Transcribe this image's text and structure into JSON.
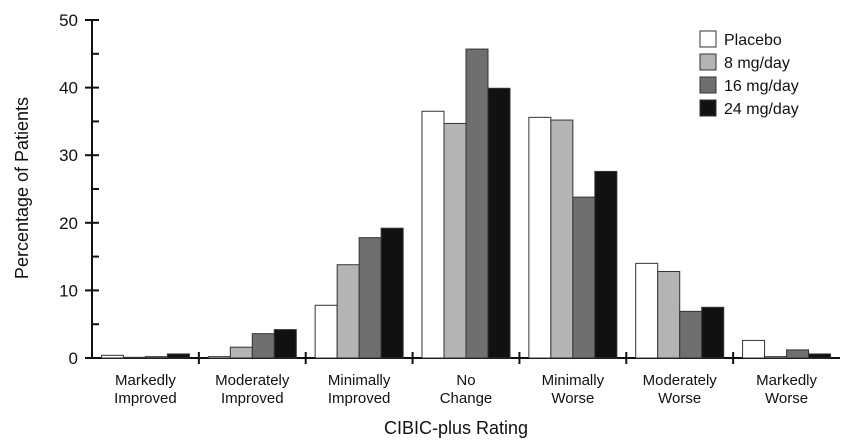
{
  "chart_data": {
    "type": "bar",
    "xlabel": "CIBIC-plus Rating",
    "ylabel": "Percentage of Patients",
    "ylim": [
      0,
      50
    ],
    "yticks": [
      "0",
      "10",
      "20",
      "30",
      "40",
      "50"
    ],
    "categories": [
      [
        "Markedly",
        "Improved"
      ],
      [
        "Moderately",
        "Improved"
      ],
      [
        "Minimally",
        "Improved"
      ],
      [
        "No",
        "Change"
      ],
      [
        "Minimally",
        "Worse"
      ],
      [
        "Moderately",
        "Worse"
      ],
      [
        "Markedly",
        "Worse"
      ]
    ],
    "series": [
      {
        "name": "Placebo",
        "color": "#ffffff",
        "values": [
          0.4,
          0.2,
          7.8,
          36.5,
          35.6,
          14.0,
          2.6
        ]
      },
      {
        "name": "8 mg/day",
        "color": "#b4b4b4",
        "values": [
          0.1,
          1.6,
          13.8,
          34.7,
          35.2,
          12.8,
          0.2
        ]
      },
      {
        "name": "16 mg/day",
        "color": "#6f6f6f",
        "values": [
          0.2,
          3.6,
          17.8,
          45.7,
          23.8,
          6.9,
          1.2
        ]
      },
      {
        "name": "24 mg/day",
        "color": "#111111",
        "values": [
          0.6,
          4.2,
          19.2,
          39.9,
          27.6,
          7.5,
          0.6
        ]
      }
    ],
    "legend_position": "top-right",
    "grid": false
  }
}
